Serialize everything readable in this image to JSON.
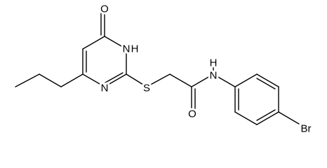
{
  "atoms": [
    {
      "label": "O"
    },
    {
      "label": "N"
    },
    {
      "label": "H"
    },
    {
      "label": "N"
    },
    {
      "label": "S"
    },
    {
      "label": "O"
    },
    {
      "label": "N"
    },
    {
      "label": "H"
    },
    {
      "label": "Br"
    }
  ]
}
